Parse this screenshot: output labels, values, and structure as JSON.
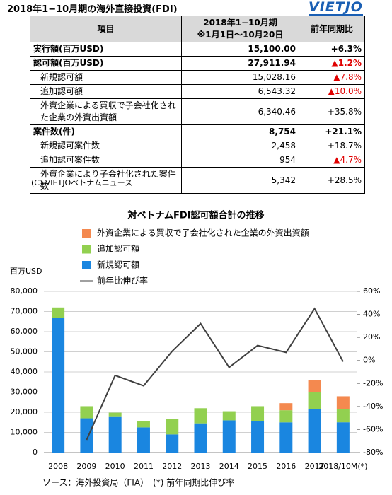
{
  "header": {
    "title": "2018年1−10月期の海外直接投資(FDI)",
    "logo": "VIETJO"
  },
  "table": {
    "header": [
      "項目",
      "2018年1−10月期",
      "※1月1日～10月20日",
      "前年同期比"
    ],
    "rows": [
      {
        "label": "実行額(百万USD)",
        "value": "15,100.00",
        "change": "+6.3%",
        "bold": true
      },
      {
        "label": "認可額(百万USD)",
        "value": "27,911.94",
        "change": "▲1.2%",
        "bold": true,
        "change_color": "#e00000"
      },
      {
        "label": "新規認可額",
        "value": "15,028.16",
        "change": "▲7.8%",
        "indent": true,
        "change_color": "#e00000"
      },
      {
        "label": "追加認可額",
        "value": "6,543.32",
        "change": "▲10.0%",
        "indent": true,
        "change_color": "#e00000"
      },
      {
        "label": "外資企業による買収で子会社化された企業の外資出資額",
        "value": "6,340.46",
        "change": "+35.8%",
        "indent": true
      },
      {
        "label": "案件数(件)",
        "value": "8,754",
        "change": "+21.1%",
        "bold": true
      },
      {
        "label": "新規認可案件数",
        "value": "2,458",
        "change": "+18.7%",
        "indent": true
      },
      {
        "label": "追加認可案件数",
        "value": "954",
        "change": "▲4.7%",
        "indent": true,
        "change_color": "#e00000"
      },
      {
        "label": "外資企業により子会社化された案件数",
        "value": "5,342",
        "change": "+28.5%",
        "indent": true
      }
    ],
    "copyright": "(C) VIETJOベトナムニュース"
  },
  "chart_data": {
    "type": "bar",
    "stacked": true,
    "title": "対ベトナムFDI認可額合計の推移",
    "ylabel": "百万USD",
    "source": "ソース：海外投資局（FIA）　(*) 前年同期比伸び率",
    "categories": [
      "2008",
      "2009",
      "2010",
      "2011",
      "2012",
      "2013",
      "2014",
      "2015",
      "2016",
      "2017",
      "2018/10M(*)"
    ],
    "series": [
      {
        "name": "外資企業による買収で子会社化された企業の外資出資額",
        "color": "#f4894f",
        "values": [
          null,
          null,
          null,
          null,
          null,
          null,
          null,
          null,
          3500,
          6000,
          6340.46
        ]
      },
      {
        "name": "追加認可額",
        "color": "#92d050",
        "values": [
          5000,
          6000,
          1800,
          3000,
          7500,
          7500,
          4500,
          7500,
          6000,
          8500,
          6543.32
        ]
      },
      {
        "name": "新規認可額",
        "color": "#1a86e0",
        "values": [
          67000,
          17000,
          18000,
          12500,
          9000,
          14500,
          16000,
          15500,
          15000,
          21500,
          15028.16
        ]
      },
      {
        "name": "前年比伸び率",
        "color": "#404040",
        "type": "line",
        "axis": "y2",
        "values": [
          null,
          -69,
          -13,
          -22,
          8,
          32,
          -6,
          13,
          7,
          45,
          -1
        ]
      }
    ],
    "ylim": [
      0,
      80000
    ],
    "yticks": [
      0,
      {
        "value": 10000,
        "label": "10,000"
      },
      {
        "value": 20000,
        "label": "20,000"
      },
      {
        "value": 30000,
        "label": "30,000"
      },
      {
        "value": 40000,
        "label": "40,000"
      },
      {
        "value": 50000,
        "label": "50,000"
      },
      {
        "value": 60000,
        "label": "60,000"
      },
      {
        "value": 70000,
        "label": "70,000"
      },
      {
        "value": 80000,
        "label": "80,000"
      }
    ],
    "y2lim": [
      -80,
      60
    ],
    "y2ticks": [
      {
        "value": -80,
        "label": "-80%"
      },
      {
        "value": -60,
        "label": "-60%"
      },
      {
        "value": -40,
        "label": "-40%"
      },
      {
        "value": -20,
        "label": "-20%"
      },
      {
        "value": 0,
        "label": "0%"
      },
      {
        "value": 20,
        "label": "20%"
      },
      {
        "value": 40,
        "label": "40%"
      },
      {
        "value": 60,
        "label": "60%"
      }
    ],
    "grid": true
  }
}
